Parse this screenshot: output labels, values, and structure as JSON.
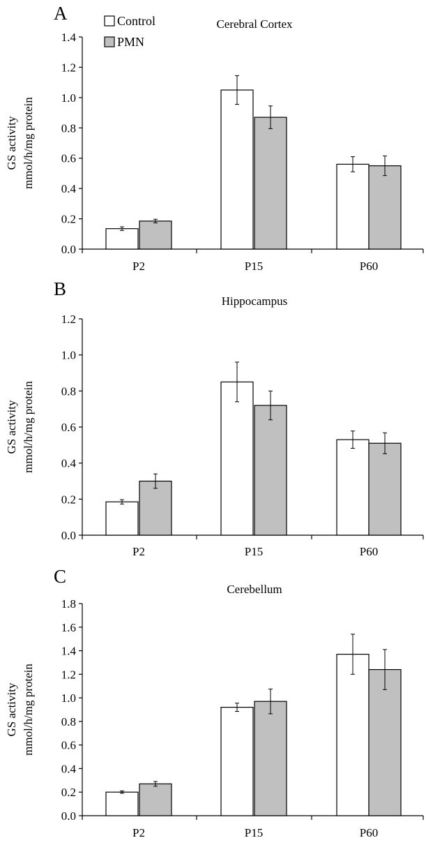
{
  "legend": [
    {
      "name": "Control",
      "color": "#ffffff"
    },
    {
      "name": "PMN",
      "color": "#c0c0c0"
    }
  ],
  "chart_data": [
    {
      "type": "bar",
      "panel": "A",
      "title": "Cerebral Cortex",
      "ylabel": [
        "GS activity",
        "mmol/h/mg protein"
      ],
      "categories": [
        "P2",
        "P15",
        "P60"
      ],
      "ylim": [
        0,
        1.4
      ],
      "yticks": [
        0.0,
        0.2,
        0.4,
        0.6,
        0.8,
        1.0,
        1.2,
        1.4
      ],
      "ytick_labels": [
        "0.0",
        "0.2",
        "0.4",
        "0.6",
        "0.8",
        "1.0",
        "1.2",
        "1.4"
      ],
      "series": [
        {
          "name": "Control",
          "color": "#ffffff",
          "values": [
            0.135,
            1.05,
            0.56
          ],
          "errors": [
            0.012,
            0.095,
            0.05
          ]
        },
        {
          "name": "PMN",
          "color": "#c0c0c0",
          "values": [
            0.185,
            0.87,
            0.55
          ],
          "errors": [
            0.012,
            0.075,
            0.065
          ]
        }
      ]
    },
    {
      "type": "bar",
      "panel": "B",
      "title": "Hippocampus",
      "ylabel": [
        "GS activity",
        "mmol/h/mg protein"
      ],
      "categories": [
        "P2",
        "P15",
        "P60"
      ],
      "ylim": [
        0,
        1.2
      ],
      "yticks": [
        0.0,
        0.2,
        0.4,
        0.6,
        0.8,
        1.0,
        1.2
      ],
      "ytick_labels": [
        "0.0",
        "0.2",
        "0.4",
        "0.6",
        "0.8",
        "1.0",
        "1.2"
      ],
      "series": [
        {
          "name": "Control",
          "color": "#ffffff",
          "values": [
            0.185,
            0.85,
            0.53
          ],
          "errors": [
            0.012,
            0.11,
            0.048
          ]
        },
        {
          "name": "PMN",
          "color": "#c0c0c0",
          "values": [
            0.3,
            0.72,
            0.51
          ],
          "errors": [
            0.04,
            0.08,
            0.058
          ]
        }
      ]
    },
    {
      "type": "bar",
      "panel": "C",
      "title": "Cerebellum",
      "ylabel": [
        "GS activity",
        "mmol/h/mg protein"
      ],
      "categories": [
        "P2",
        "P15",
        "P60"
      ],
      "ylim": [
        0,
        1.8
      ],
      "yticks": [
        0.0,
        0.2,
        0.4,
        0.6,
        0.8,
        1.0,
        1.2,
        1.4,
        1.6,
        1.8
      ],
      "ytick_labels": [
        "0.0",
        "0.2",
        "0.4",
        "0.6",
        "0.8",
        "1.0",
        "1.2",
        "1.4",
        "1.6",
        "1.8"
      ],
      "series": [
        {
          "name": "Control",
          "color": "#ffffff",
          "values": [
            0.2,
            0.92,
            1.37
          ],
          "errors": [
            0.01,
            0.035,
            0.17
          ]
        },
        {
          "name": "PMN",
          "color": "#c0c0c0",
          "values": [
            0.27,
            0.97,
            1.24
          ],
          "errors": [
            0.02,
            0.105,
            0.17
          ]
        }
      ]
    }
  ]
}
